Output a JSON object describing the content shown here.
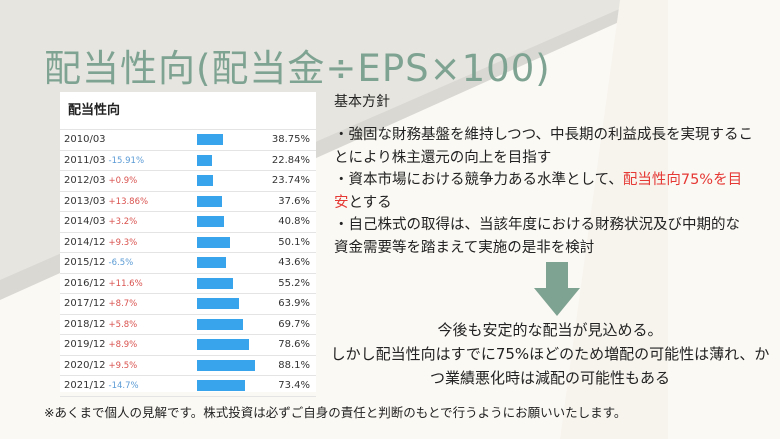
{
  "title": "配当性向(配当金÷EPS×100)",
  "table": {
    "title": "配当性向",
    "rows": [
      {
        "year": "2010/03",
        "change": "",
        "direction": "none",
        "value": "38.75%",
        "bar": 38.75
      },
      {
        "year": "2011/03",
        "change": "-15.91%",
        "direction": "down",
        "value": "22.84%",
        "bar": 22.84
      },
      {
        "year": "2012/03",
        "change": "+0.9%",
        "direction": "up",
        "value": "23.74%",
        "bar": 23.74
      },
      {
        "year": "2013/03",
        "change": "+13.86%",
        "direction": "up",
        "value": "37.6%",
        "bar": 37.6
      },
      {
        "year": "2014/03",
        "change": "+3.2%",
        "direction": "up",
        "value": "40.8%",
        "bar": 40.8
      },
      {
        "year": "2014/12",
        "change": "+9.3%",
        "direction": "up",
        "value": "50.1%",
        "bar": 50.1
      },
      {
        "year": "2015/12",
        "change": "-6.5%",
        "direction": "down",
        "value": "43.6%",
        "bar": 43.6
      },
      {
        "year": "2016/12",
        "change": "+11.6%",
        "direction": "up",
        "value": "55.2%",
        "bar": 55.2
      },
      {
        "year": "2017/12",
        "change": "+8.7%",
        "direction": "up",
        "value": "63.9%",
        "bar": 63.9
      },
      {
        "year": "2018/12",
        "change": "+5.8%",
        "direction": "up",
        "value": "69.7%",
        "bar": 69.7
      },
      {
        "year": "2019/12",
        "change": "+8.9%",
        "direction": "up",
        "value": "78.6%",
        "bar": 78.6
      },
      {
        "year": "2020/12",
        "change": "+9.5%",
        "direction": "up",
        "value": "88.1%",
        "bar": 88.1
      },
      {
        "year": "2021/12",
        "change": "-14.7%",
        "direction": "down",
        "value": "73.4%",
        "bar": 73.4
      }
    ]
  },
  "policy": {
    "heading": "基本方針",
    "bullet1": "・強固な財務基盤を維持しつつ、中長期の利益成長を実現することにより株主還元の向上を目指す",
    "bullet2_pre": "・資本市場における競争力ある水準として、",
    "bullet2_hl": "配当性向75%を目安",
    "bullet2_post": "とする",
    "bullet3": "・自己株式の取得は、当該年度における財務状況及び中期的な資金需要等を踏まえて実施の是非を検討"
  },
  "conclusion": {
    "line1": "今後も安定的な配当が見込める。",
    "line2": "しかし配当性向はすでに75%ほどのため増配の可能性は薄れ、かつ業績悪化時は減配の可能性もある"
  },
  "disclaimer": "※あくまで個人の見解です。株式投資は必ずご自身の責任と判断のもとで行うようにお願いいたします。",
  "colors": {
    "accent": "#7fa392",
    "bar": "#37a4ec",
    "up": "#d9534f",
    "down": "#5b9bd5",
    "highlight": "#e53935"
  }
}
